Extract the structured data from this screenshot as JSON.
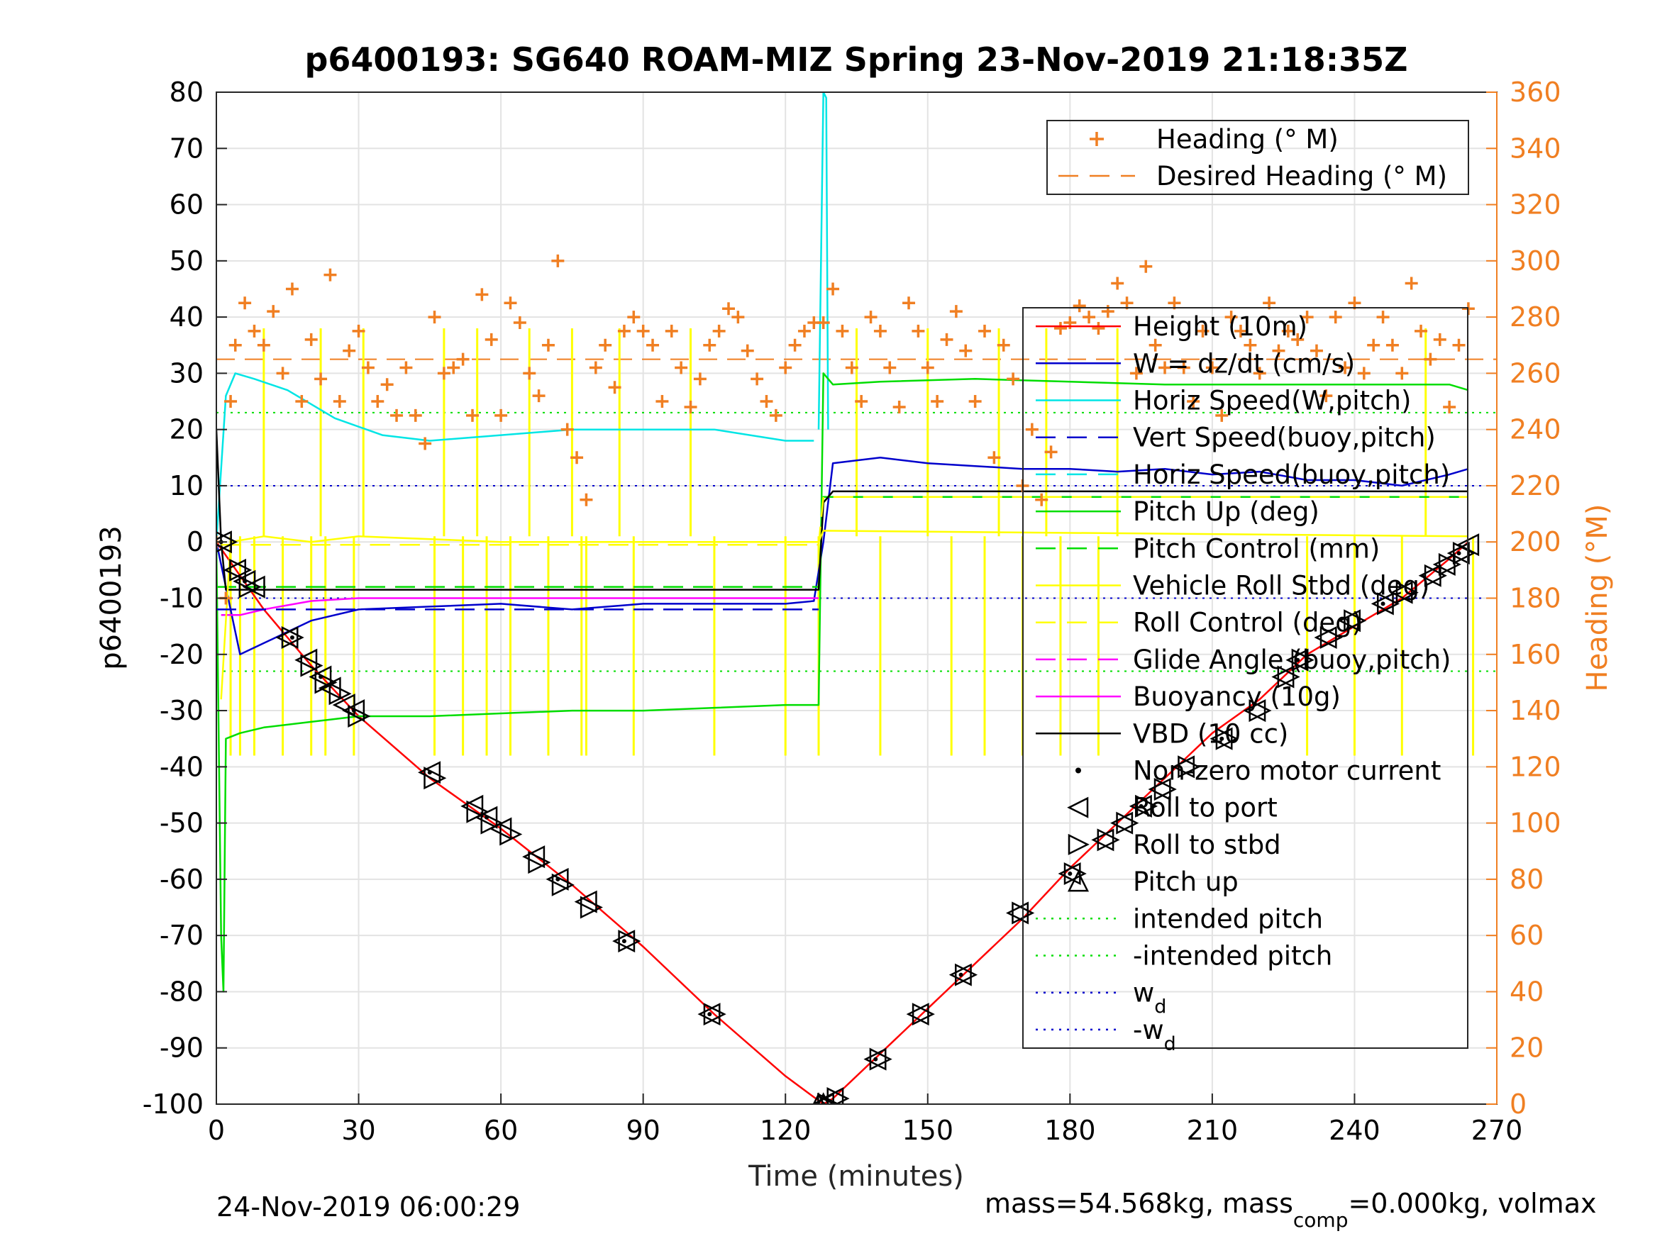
{
  "chart_data": {
    "type": "line",
    "title": "p6400193: SG640 ROAM-MIZ Spring 23-Nov-2019 21:18:35Z",
    "xlabel": "Time (minutes)",
    "ylabel": "p6400193",
    "y2label": "Heading (°M)",
    "xlim": [
      0,
      270
    ],
    "ylim": [
      -100,
      80
    ],
    "y2lim": [
      0,
      360
    ],
    "xticks": [
      "0",
      "30",
      "60",
      "90",
      "120",
      "150",
      "180",
      "210",
      "240",
      "270"
    ],
    "yticks": [
      "80",
      "70",
      "60",
      "50",
      "40",
      "30",
      "20",
      "10",
      "0",
      "-10",
      "-20",
      "-30",
      "-40",
      "-50",
      "-60",
      "-70",
      "-80",
      "-90",
      "-100"
    ],
    "y2ticks": [
      "360",
      "340",
      "320",
      "300",
      "280",
      "260",
      "240",
      "220",
      "200",
      "180",
      "160",
      "140",
      "120",
      "100",
      "80",
      "60",
      "40",
      "20",
      "0"
    ],
    "grid": true,
    "footer_left": "24-Nov-2019 06:00:29",
    "footer_right": "mass=54.568kg, mass",
    "footer_right_sub": "comp",
    "footer_right_tail": "=0.000kg, volmax",
    "legend_top": {
      "placement": "top-right",
      "entries": [
        {
          "label": "Heading (° M)",
          "color": "#f07f22",
          "style": "plus"
        },
        {
          "label": "Desired Heading (° M)",
          "color": "#f07f22",
          "style": "dash"
        }
      ]
    },
    "legend_main": {
      "placement": "right",
      "entries": [
        {
          "label": "Height (10m)",
          "color": "#ff0000",
          "style": "solid"
        },
        {
          "label": "W = dz/dt (cm/s)",
          "color": "#0000cc",
          "style": "solid"
        },
        {
          "label": "Horiz Speed(W,pitch)",
          "color": "#00e5e5",
          "style": "solid"
        },
        {
          "label": "Vert Speed(buoy,pitch)",
          "color": "#0000cc",
          "style": "dash"
        },
        {
          "label": "Horiz Speed(buoy,pitch)",
          "color": "#00e5e5",
          "style": "dash"
        },
        {
          "label": "Pitch Up (deg)",
          "color": "#00dd00",
          "style": "solid"
        },
        {
          "label": "Pitch Control (mm)",
          "color": "#00dd00",
          "style": "dash"
        },
        {
          "label": "Vehicle Roll Stbd (deg)",
          "color": "#ffff00",
          "style": "solid"
        },
        {
          "label": "Roll Control (deg)",
          "color": "#ffff00",
          "style": "dash"
        },
        {
          "label": "Glide Angle (buoy,pitch)",
          "color": "#ff00ff",
          "style": "dash"
        },
        {
          "label": "Buoyancy (10g)",
          "color": "#ff00ff",
          "style": "solid"
        },
        {
          "label": "VBD (10 cc)",
          "color": "#000000",
          "style": "solid"
        },
        {
          "label": "Non-zero motor current",
          "color": "#000000",
          "style": "dot"
        },
        {
          "label": "Roll to port",
          "color": "#000000",
          "style": "tri-left"
        },
        {
          "label": "Roll to stbd",
          "color": "#000000",
          "style": "tri-right"
        },
        {
          "label": "Pitch up",
          "color": "#000000",
          "style": "tri-up"
        },
        {
          "label": "intended pitch",
          "color": "#00dd00",
          "style": "dotted"
        },
        {
          "label": "-intended pitch",
          "color": "#00dd00",
          "style": "dotted"
        },
        {
          "label": "w",
          "sub": "d",
          "color": "#0000cc",
          "style": "dotted"
        },
        {
          "label": "-w",
          "sub": "d",
          "color": "#0000cc",
          "style": "dotted"
        }
      ]
    },
    "series": [
      {
        "name": "Height (10m)",
        "color": "#ff0000",
        "x": [
          0,
          5,
          10,
          15,
          20,
          30,
          45,
          60,
          75,
          90,
          105,
          120,
          128,
          130,
          140,
          150,
          160,
          170,
          180,
          190,
          200,
          210,
          220,
          230,
          240,
          250,
          260,
          264
        ],
        "y": [
          0,
          -6,
          -12,
          -17,
          -22,
          -31,
          -42,
          -51,
          -61,
          -72,
          -84,
          -95,
          -100,
          -99,
          -91,
          -83,
          -75,
          -67,
          -58,
          -50,
          -42,
          -34,
          -28,
          -20,
          -15,
          -10,
          -3,
          0
        ]
      },
      {
        "name": "W = dz/dt (cm/s)",
        "color": "#0000cc",
        "x": [
          0,
          5,
          10,
          20,
          30,
          45,
          60,
          75,
          90,
          105,
          120,
          126,
          128,
          130,
          140,
          150,
          160,
          170,
          180,
          190,
          200,
          210,
          220,
          230,
          240,
          250,
          260,
          264
        ],
        "y": [
          0,
          -20,
          -18,
          -14,
          -12,
          -11.5,
          -11,
          -12,
          -11,
          -11,
          -11,
          -10.5,
          0,
          14,
          15,
          14,
          13.5,
          13,
          13,
          12.5,
          13,
          12,
          12.5,
          11,
          11,
          10,
          12,
          13
        ]
      },
      {
        "name": "Horiz Speed(W,pitch)",
        "color": "#00e5e5",
        "x": [
          0,
          2,
          4,
          8,
          15,
          25,
          35,
          45,
          60,
          75,
          90,
          105,
          120,
          126
        ],
        "y": [
          0,
          26,
          30,
          29,
          27,
          22,
          19,
          18,
          19,
          20,
          20,
          20,
          18,
          18
        ]
      },
      {
        "name": "Horiz Speed spike",
        "color": "#00e5e5",
        "x": [
          127,
          128,
          128.6,
          129
        ],
        "y": [
          20,
          80,
          79,
          20
        ]
      },
      {
        "name": "Pitch Up (deg)",
        "color": "#00dd00",
        "x": [
          0,
          1,
          1.5,
          2,
          5,
          10,
          20,
          30,
          45,
          60,
          75,
          90,
          105,
          120,
          127,
          128,
          130,
          140,
          160,
          180,
          200,
          220,
          240,
          260,
          264
        ],
        "y": [
          0,
          -70,
          -80,
          -35,
          -34,
          -33,
          -32,
          -31,
          -31,
          -30.5,
          -30,
          -30,
          -29.5,
          -29,
          -29,
          30,
          28,
          28.5,
          29,
          28.5,
          28,
          28,
          28,
          28,
          27
        ]
      },
      {
        "name": "Pitch Control (mm)",
        "color": "#00dd00",
        "dash": true,
        "x": [
          0,
          127,
          128,
          264
        ],
        "y": [
          -8,
          -8,
          8,
          8
        ]
      },
      {
        "name": "Buoyancy (10g)",
        "color": "#ff00ff",
        "x": [
          1,
          5,
          10,
          20,
          30,
          45,
          60,
          90,
          120,
          127
        ],
        "y": [
          -13,
          -13,
          -12,
          -10.5,
          -10,
          -10,
          -10,
          -10,
          -10,
          -10
        ]
      },
      {
        "name": "Glide Angle (buoy,pitch)",
        "color": "#ff00ff",
        "dash": true,
        "x": [
          1,
          127
        ],
        "y": [
          -0.5,
          -0.5
        ]
      },
      {
        "name": "VBD (10 cc)",
        "color": "#000000",
        "x": [
          0,
          1,
          2,
          60,
          127,
          128,
          130,
          264
        ],
        "y": [
          20,
          0,
          -8.5,
          -8.5,
          -8.5,
          7,
          9,
          9
        ]
      },
      {
        "name": "Roll Control (deg)",
        "color": "#ffff00",
        "dash": true,
        "x": [
          1,
          127,
          128,
          264
        ],
        "y": [
          -0.5,
          -0.5,
          8,
          8
        ]
      },
      {
        "name": "Vehicle Roll Stbd (deg)",
        "color": "#ffff00",
        "x": [
          1,
          3,
          10,
          20,
          30,
          60,
          90,
          127,
          128,
          264
        ],
        "y": [
          -28,
          0,
          1,
          0,
          1,
          0,
          0,
          0,
          2,
          1
        ]
      },
      {
        "name": "Vert Speed(buoy,pitch)",
        "color": "#0000cc",
        "dash": true,
        "x": [
          0,
          127
        ],
        "y": [
          -12,
          -12
        ]
      }
    ],
    "roll_spikes_down": [
      3,
      5,
      8,
      14,
      20,
      23,
      29,
      46,
      52,
      57,
      62,
      70,
      77,
      78,
      88,
      105,
      120,
      127,
      140,
      155,
      162,
      170,
      178,
      186,
      230,
      240,
      250,
      265
    ],
    "roll_spikes_up": [
      10,
      22,
      31,
      48,
      55,
      66,
      75,
      85,
      100,
      135,
      150,
      165,
      175,
      190,
      255
    ],
    "reference_lines": [
      {
        "name": "intended pitch",
        "value": 23,
        "color": "#00dd00"
      },
      {
        "name": "-intended pitch",
        "value": -23,
        "color": "#00dd00"
      },
      {
        "name": "w_d",
        "value": 10,
        "color": "#0000cc"
      },
      {
        "name": "-w_d",
        "value": -10,
        "color": "#0000cc"
      }
    ],
    "desired_heading": 265,
    "heading": {
      "color": "#f07f22",
      "x": [
        0,
        2,
        3,
        4,
        6,
        8,
        10,
        12,
        14,
        16,
        18,
        20,
        22,
        24,
        26,
        28,
        30,
        32,
        34,
        36,
        38,
        40,
        42,
        44,
        46,
        48,
        50,
        52,
        54,
        56,
        58,
        60,
        62,
        64,
        66,
        68,
        70,
        72,
        74,
        76,
        78,
        80,
        82,
        84,
        86,
        88,
        90,
        92,
        94,
        96,
        98,
        100,
        102,
        104,
        106,
        108,
        110,
        112,
        114,
        116,
        118,
        120,
        122,
        124,
        126,
        128,
        130,
        132,
        134,
        136,
        138,
        140,
        142,
        144,
        146,
        148,
        150,
        152,
        154,
        156,
        158,
        160,
        162,
        164,
        166,
        168,
        170,
        172,
        174,
        176,
        178,
        180,
        182,
        184,
        186,
        188,
        190,
        192,
        194,
        196,
        198,
        200,
        202,
        204,
        206,
        208,
        210,
        212,
        214,
        216,
        218,
        220,
        222,
        224,
        226,
        228,
        230,
        232,
        234,
        236,
        238,
        240,
        242,
        244,
        246,
        248,
        250,
        252,
        254,
        256,
        258,
        260,
        262,
        264
      ],
      "y": [
        200,
        180,
        250,
        270,
        285,
        275,
        270,
        282,
        260,
        290,
        250,
        272,
        258,
        295,
        250,
        268,
        275,
        262,
        250,
        256,
        245,
        262,
        245,
        235,
        280,
        260,
        262,
        265,
        245,
        288,
        272,
        245,
        285,
        278,
        260,
        252,
        270,
        300,
        240,
        230,
        215,
        262,
        270,
        255,
        275,
        280,
        275,
        270,
        250,
        275,
        262,
        248,
        258,
        270,
        275,
        283,
        280,
        268,
        258,
        250,
        245,
        262,
        270,
        275,
        278,
        278,
        290,
        275,
        262,
        250,
        280,
        275,
        262,
        248,
        285,
        275,
        262,
        250,
        272,
        282,
        268,
        250,
        275,
        230,
        270,
        258,
        220,
        240,
        215,
        232,
        276,
        278,
        284,
        280,
        276,
        282,
        292,
        285,
        260,
        298,
        270,
        262,
        285,
        262,
        250,
        275,
        262,
        245,
        280,
        275,
        270,
        260,
        285,
        268,
        275,
        272,
        280,
        268,
        252,
        280,
        262,
        285,
        260,
        270,
        280,
        270,
        260,
        292,
        275,
        265,
        272,
        248,
        270,
        283
      ]
    },
    "markers": {
      "roll_port": [
        [
          1,
          0
        ],
        [
          4,
          -5
        ],
        [
          6,
          -7
        ],
        [
          8,
          -8
        ],
        [
          15,
          -17
        ],
        [
          19,
          -21
        ],
        [
          22,
          -24
        ],
        [
          24,
          -26
        ],
        [
          27,
          -29
        ],
        [
          29,
          -30
        ],
        [
          45,
          -41
        ],
        [
          54,
          -47
        ],
        [
          57,
          -49
        ],
        [
          60,
          -51
        ],
        [
          67,
          -56
        ],
        [
          72,
          -60
        ],
        [
          78,
          -64
        ],
        [
          86,
          -71
        ],
        [
          104,
          -84
        ],
        [
          128,
          -100
        ],
        [
          130,
          -99
        ],
        [
          139,
          -92
        ],
        [
          148,
          -84
        ],
        [
          157,
          -77
        ],
        [
          169,
          -66
        ],
        [
          180,
          -59
        ],
        [
          187,
          -53
        ],
        [
          191,
          -50
        ],
        [
          195,
          -47
        ],
        [
          199,
          -44
        ],
        [
          204,
          -40
        ],
        [
          212,
          -35
        ],
        [
          219,
          -30
        ],
        [
          225,
          -24
        ],
        [
          228,
          -21
        ],
        [
          234,
          -17
        ],
        [
          239,
          -14
        ],
        [
          246,
          -11
        ],
        [
          250,
          -9
        ],
        [
          256,
          -6
        ],
        [
          259,
          -4
        ],
        [
          262,
          -2
        ],
        [
          264,
          -0.5
        ]
      ],
      "roll_stbd": [
        [
          2,
          0
        ],
        [
          5,
          -5
        ],
        [
          7,
          -8
        ],
        [
          16,
          -17
        ],
        [
          20,
          -22
        ],
        [
          23,
          -25
        ],
        [
          26,
          -27
        ],
        [
          30,
          -31
        ],
        [
          46,
          -42
        ],
        [
          55,
          -48
        ],
        [
          58,
          -50
        ],
        [
          62,
          -52
        ],
        [
          68,
          -57
        ],
        [
          73,
          -61
        ],
        [
          79,
          -65
        ],
        [
          87,
          -71
        ],
        [
          105,
          -84
        ],
        [
          129,
          -100
        ],
        [
          131,
          -99
        ],
        [
          140,
          -92
        ],
        [
          149,
          -84
        ],
        [
          158,
          -77
        ],
        [
          170,
          -66
        ],
        [
          181,
          -59
        ],
        [
          188,
          -53
        ],
        [
          192,
          -50
        ],
        [
          196,
          -47
        ],
        [
          200,
          -44
        ],
        [
          205,
          -40
        ],
        [
          213,
          -35
        ],
        [
          220,
          -30
        ],
        [
          226,
          -24
        ],
        [
          229,
          -21
        ],
        [
          235,
          -17
        ],
        [
          240,
          -14
        ],
        [
          247,
          -11
        ],
        [
          251,
          -9
        ],
        [
          257,
          -6
        ],
        [
          260,
          -4
        ],
        [
          263,
          -2
        ]
      ],
      "pitch_up": [
        [
          127,
          -100
        ],
        [
          128,
          -100
        ]
      ],
      "motor": [
        [
          1,
          0
        ],
        [
          6,
          -7
        ],
        [
          16,
          -17
        ],
        [
          22,
          -24
        ],
        [
          29,
          -30
        ],
        [
          45,
          -41
        ],
        [
          57,
          -49
        ],
        [
          72,
          -60
        ],
        [
          86,
          -71
        ],
        [
          104,
          -84
        ],
        [
          128,
          -100
        ],
        [
          139,
          -92
        ],
        [
          157,
          -77
        ],
        [
          180,
          -59
        ],
        [
          195,
          -47
        ],
        [
          212,
          -35
        ],
        [
          228,
          -21
        ],
        [
          246,
          -11
        ],
        [
          262,
          -2
        ]
      ]
    }
  }
}
